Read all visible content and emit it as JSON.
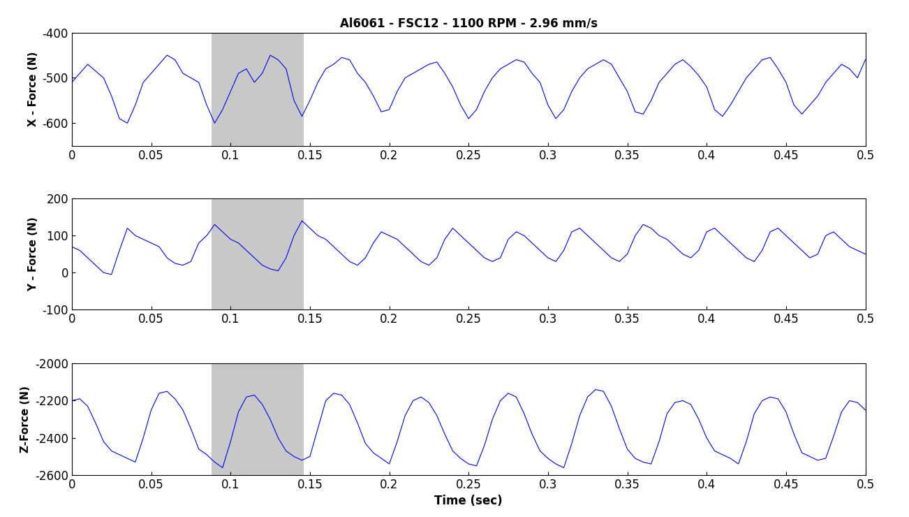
{
  "chart_data": [
    {
      "type": "line",
      "title": "Al6061 - FSC12 - 1100 RPM - 2.96 mm/s",
      "y_label": "X - Force (N)",
      "x": [
        0,
        0.005,
        0.01,
        0.015,
        0.02,
        0.025,
        0.03,
        0.035,
        0.04,
        0.045,
        0.05,
        0.055,
        0.06,
        0.065,
        0.07,
        0.075,
        0.08,
        0.085,
        0.09,
        0.095,
        0.1,
        0.105,
        0.11,
        0.115,
        0.12,
        0.125,
        0.13,
        0.135,
        0.14,
        0.145,
        0.15,
        0.155,
        0.16,
        0.165,
        0.17,
        0.175,
        0.18,
        0.185,
        0.19,
        0.195,
        0.2,
        0.205,
        0.21,
        0.215,
        0.22,
        0.225,
        0.23,
        0.235,
        0.24,
        0.245,
        0.25,
        0.255,
        0.26,
        0.265,
        0.27,
        0.275,
        0.28,
        0.285,
        0.29,
        0.295,
        0.3,
        0.305,
        0.31,
        0.315,
        0.32,
        0.325,
        0.33,
        0.335,
        0.34,
        0.345,
        0.35,
        0.355,
        0.36,
        0.365,
        0.37,
        0.375,
        0.38,
        0.385,
        0.39,
        0.395,
        0.4,
        0.405,
        0.41,
        0.415,
        0.42,
        0.425,
        0.43,
        0.435,
        0.44,
        0.445,
        0.45,
        0.455,
        0.46,
        0.465,
        0.47,
        0.475,
        0.48,
        0.485,
        0.49,
        0.495,
        0.5
      ],
      "values": [
        -510,
        -490,
        -470,
        -485,
        -500,
        -540,
        -590,
        -600,
        -560,
        -510,
        -490,
        -470,
        -450,
        -460,
        -490,
        -500,
        -510,
        -560,
        -600,
        -570,
        -530,
        -490,
        -480,
        -510,
        -490,
        -450,
        -460,
        -480,
        -550,
        -585,
        -550,
        -510,
        -480,
        -470,
        -455,
        -460,
        -490,
        -510,
        -540,
        -575,
        -570,
        -530,
        -500,
        -490,
        -480,
        -470,
        -465,
        -490,
        -520,
        -560,
        -590,
        -570,
        -530,
        -500,
        -480,
        -470,
        -460,
        -465,
        -490,
        -510,
        -560,
        -590,
        -570,
        -530,
        -500,
        -480,
        -470,
        -460,
        -470,
        -500,
        -530,
        -575,
        -580,
        -550,
        -510,
        -490,
        -470,
        -460,
        -475,
        -495,
        -520,
        -570,
        -585,
        -560,
        -530,
        -500,
        -480,
        -460,
        -455,
        -480,
        -510,
        -560,
        -580,
        -560,
        -540,
        -510,
        -490,
        -470,
        -480,
        -500,
        -460
      ],
      "color": "#0000ff",
      "shaded_region": [
        0.088,
        0.146
      ],
      "xlim": [
        0,
        0.5
      ],
      "xticks": [
        0,
        0.05,
        0.1,
        0.15,
        0.2,
        0.25,
        0.3,
        0.35,
        0.4,
        0.45,
        0.5
      ],
      "ylim": [
        -650,
        -400
      ],
      "yticks": [
        -600,
        -500,
        -400
      ],
      "grid": false
    },
    {
      "type": "line",
      "y_label": "Y - Force (N)",
      "x": [
        0,
        0.005,
        0.01,
        0.015,
        0.02,
        0.025,
        0.03,
        0.035,
        0.04,
        0.045,
        0.05,
        0.055,
        0.06,
        0.065,
        0.07,
        0.075,
        0.08,
        0.085,
        0.09,
        0.095,
        0.1,
        0.105,
        0.11,
        0.115,
        0.12,
        0.125,
        0.13,
        0.135,
        0.14,
        0.145,
        0.15,
        0.155,
        0.16,
        0.165,
        0.17,
        0.175,
        0.18,
        0.185,
        0.19,
        0.195,
        0.2,
        0.205,
        0.21,
        0.215,
        0.22,
        0.225,
        0.23,
        0.235,
        0.24,
        0.245,
        0.25,
        0.255,
        0.26,
        0.265,
        0.27,
        0.275,
        0.28,
        0.285,
        0.29,
        0.295,
        0.3,
        0.305,
        0.31,
        0.315,
        0.32,
        0.325,
        0.33,
        0.335,
        0.34,
        0.345,
        0.35,
        0.355,
        0.36,
        0.365,
        0.37,
        0.375,
        0.38,
        0.385,
        0.39,
        0.395,
        0.4,
        0.405,
        0.41,
        0.415,
        0.42,
        0.425,
        0.43,
        0.435,
        0.44,
        0.445,
        0.45,
        0.455,
        0.46,
        0.465,
        0.47,
        0.475,
        0.48,
        0.485,
        0.49,
        0.495,
        0.5
      ],
      "values": [
        70,
        60,
        40,
        20,
        0,
        -5,
        60,
        120,
        100,
        90,
        80,
        70,
        40,
        25,
        20,
        30,
        80,
        100,
        130,
        110,
        90,
        80,
        60,
        40,
        20,
        10,
        5,
        40,
        100,
        140,
        120,
        100,
        90,
        70,
        50,
        30,
        20,
        40,
        80,
        110,
        100,
        90,
        70,
        50,
        30,
        20,
        40,
        90,
        120,
        100,
        80,
        60,
        40,
        30,
        40,
        90,
        110,
        100,
        80,
        60,
        40,
        30,
        60,
        110,
        120,
        100,
        80,
        60,
        40,
        30,
        50,
        100,
        130,
        120,
        100,
        90,
        70,
        50,
        40,
        60,
        110,
        120,
        100,
        80,
        60,
        40,
        30,
        60,
        110,
        120,
        100,
        80,
        60,
        40,
        50,
        100,
        110,
        90,
        70,
        60,
        50
      ],
      "color": "#0000ff",
      "shaded_region": [
        0.088,
        0.146
      ],
      "xlim": [
        0,
        0.5
      ],
      "xticks": [
        0,
        0.05,
        0.1,
        0.15,
        0.2,
        0.25,
        0.3,
        0.35,
        0.4,
        0.45,
        0.5
      ],
      "ylim": [
        -100,
        200
      ],
      "yticks": [
        -100,
        0,
        100,
        200
      ],
      "grid": false
    },
    {
      "type": "line",
      "x_label": "Time (sec)",
      "y_label": "Z-Force (N)",
      "x": [
        0,
        0.005,
        0.01,
        0.015,
        0.02,
        0.025,
        0.03,
        0.035,
        0.04,
        0.045,
        0.05,
        0.055,
        0.06,
        0.065,
        0.07,
        0.075,
        0.08,
        0.085,
        0.09,
        0.095,
        0.1,
        0.105,
        0.11,
        0.115,
        0.12,
        0.125,
        0.13,
        0.135,
        0.14,
        0.145,
        0.15,
        0.155,
        0.16,
        0.165,
        0.17,
        0.175,
        0.18,
        0.185,
        0.19,
        0.195,
        0.2,
        0.205,
        0.21,
        0.215,
        0.22,
        0.225,
        0.23,
        0.235,
        0.24,
        0.245,
        0.25,
        0.255,
        0.26,
        0.265,
        0.27,
        0.275,
        0.28,
        0.285,
        0.29,
        0.295,
        0.3,
        0.305,
        0.31,
        0.315,
        0.32,
        0.325,
        0.33,
        0.335,
        0.34,
        0.345,
        0.35,
        0.355,
        0.36,
        0.365,
        0.37,
        0.375,
        0.38,
        0.385,
        0.39,
        0.395,
        0.4,
        0.405,
        0.41,
        0.415,
        0.42,
        0.425,
        0.43,
        0.435,
        0.44,
        0.445,
        0.45,
        0.455,
        0.46,
        0.465,
        0.47,
        0.475,
        0.48,
        0.485,
        0.49,
        0.495,
        0.5
      ],
      "values": [
        -2200,
        -2190,
        -2230,
        -2320,
        -2420,
        -2470,
        -2490,
        -2510,
        -2530,
        -2400,
        -2250,
        -2160,
        -2150,
        -2190,
        -2250,
        -2350,
        -2460,
        -2490,
        -2530,
        -2560,
        -2420,
        -2260,
        -2180,
        -2170,
        -2220,
        -2300,
        -2400,
        -2470,
        -2500,
        -2520,
        -2500,
        -2350,
        -2200,
        -2160,
        -2170,
        -2220,
        -2320,
        -2430,
        -2480,
        -2510,
        -2540,
        -2420,
        -2280,
        -2200,
        -2180,
        -2210,
        -2280,
        -2380,
        -2470,
        -2510,
        -2540,
        -2550,
        -2440,
        -2300,
        -2200,
        -2160,
        -2180,
        -2270,
        -2380,
        -2470,
        -2510,
        -2540,
        -2560,
        -2430,
        -2280,
        -2180,
        -2140,
        -2150,
        -2230,
        -2350,
        -2460,
        -2510,
        -2530,
        -2540,
        -2420,
        -2270,
        -2210,
        -2200,
        -2220,
        -2300,
        -2400,
        -2470,
        -2490,
        -2510,
        -2540,
        -2420,
        -2270,
        -2200,
        -2180,
        -2190,
        -2260,
        -2380,
        -2480,
        -2500,
        -2520,
        -2510,
        -2390,
        -2260,
        -2200,
        -2210,
        -2250
      ],
      "color": "#0000ff",
      "shaded_region": [
        0.088,
        0.146
      ],
      "xlim": [
        0,
        0.5
      ],
      "xticks": [
        0,
        0.05,
        0.1,
        0.15,
        0.2,
        0.25,
        0.3,
        0.35,
        0.4,
        0.45,
        0.5
      ],
      "ylim": [
        -2600,
        -2000
      ],
      "yticks": [
        -2600,
        -2400,
        -2200,
        -2000
      ],
      "grid": false
    }
  ]
}
